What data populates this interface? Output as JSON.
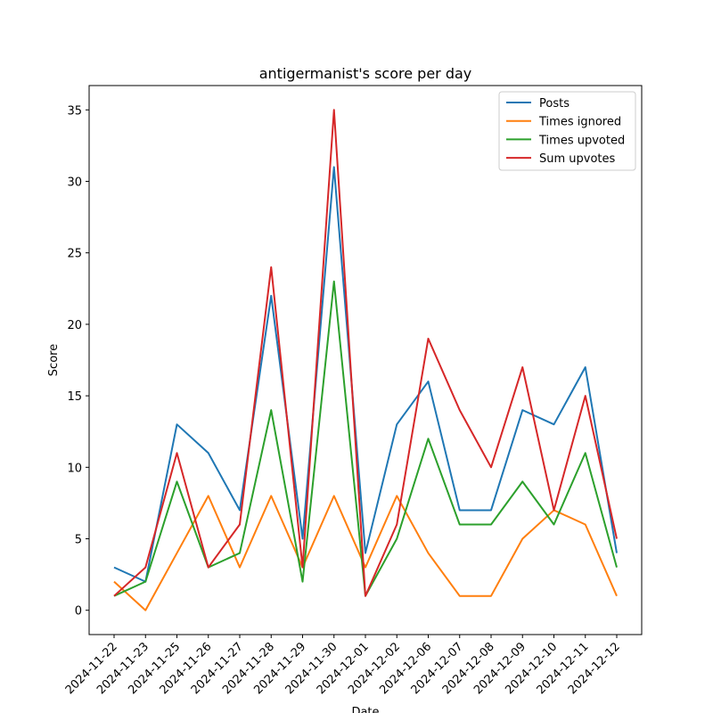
{
  "chart_data": {
    "type": "line",
    "title": "antigermanist's score per day",
    "xlabel": "Date",
    "ylabel": "Score",
    "categories": [
      "2024-11-22",
      "2024-11-23",
      "2024-11-25",
      "2024-11-26",
      "2024-11-27",
      "2024-11-28",
      "2024-11-29",
      "2024-11-30",
      "2024-12-01",
      "2024-12-02",
      "2024-12-06",
      "2024-12-07",
      "2024-12-08",
      "2024-12-09",
      "2024-12-10",
      "2024-12-11",
      "2024-12-12"
    ],
    "yticks": [
      0,
      5,
      10,
      15,
      20,
      25,
      30,
      35
    ],
    "ylim": [
      -1.7,
      36.7
    ],
    "grid": false,
    "legend_position": "top-right",
    "series": [
      {
        "name": "Posts",
        "color": "#1f77b4",
        "values": [
          3,
          2,
          13,
          11,
          7,
          22,
          5,
          31,
          4,
          13,
          16,
          7,
          7,
          14,
          13,
          17,
          4
        ]
      },
      {
        "name": "Times ignored",
        "color": "#ff7f0e",
        "values": [
          2,
          0,
          4,
          8,
          3,
          8,
          3,
          8,
          3,
          8,
          4,
          1,
          1,
          5,
          7,
          6,
          1
        ]
      },
      {
        "name": "Times upvoted",
        "color": "#2ca02c",
        "values": [
          1,
          2,
          9,
          3,
          4,
          14,
          2,
          23,
          1,
          5,
          12,
          6,
          6,
          9,
          6,
          11,
          3
        ]
      },
      {
        "name": "Sum upvotes",
        "color": "#d62728",
        "values": [
          1,
          3,
          11,
          3,
          6,
          24,
          3,
          35,
          1,
          6,
          19,
          14,
          10,
          17,
          7,
          15,
          5
        ]
      }
    ]
  }
}
